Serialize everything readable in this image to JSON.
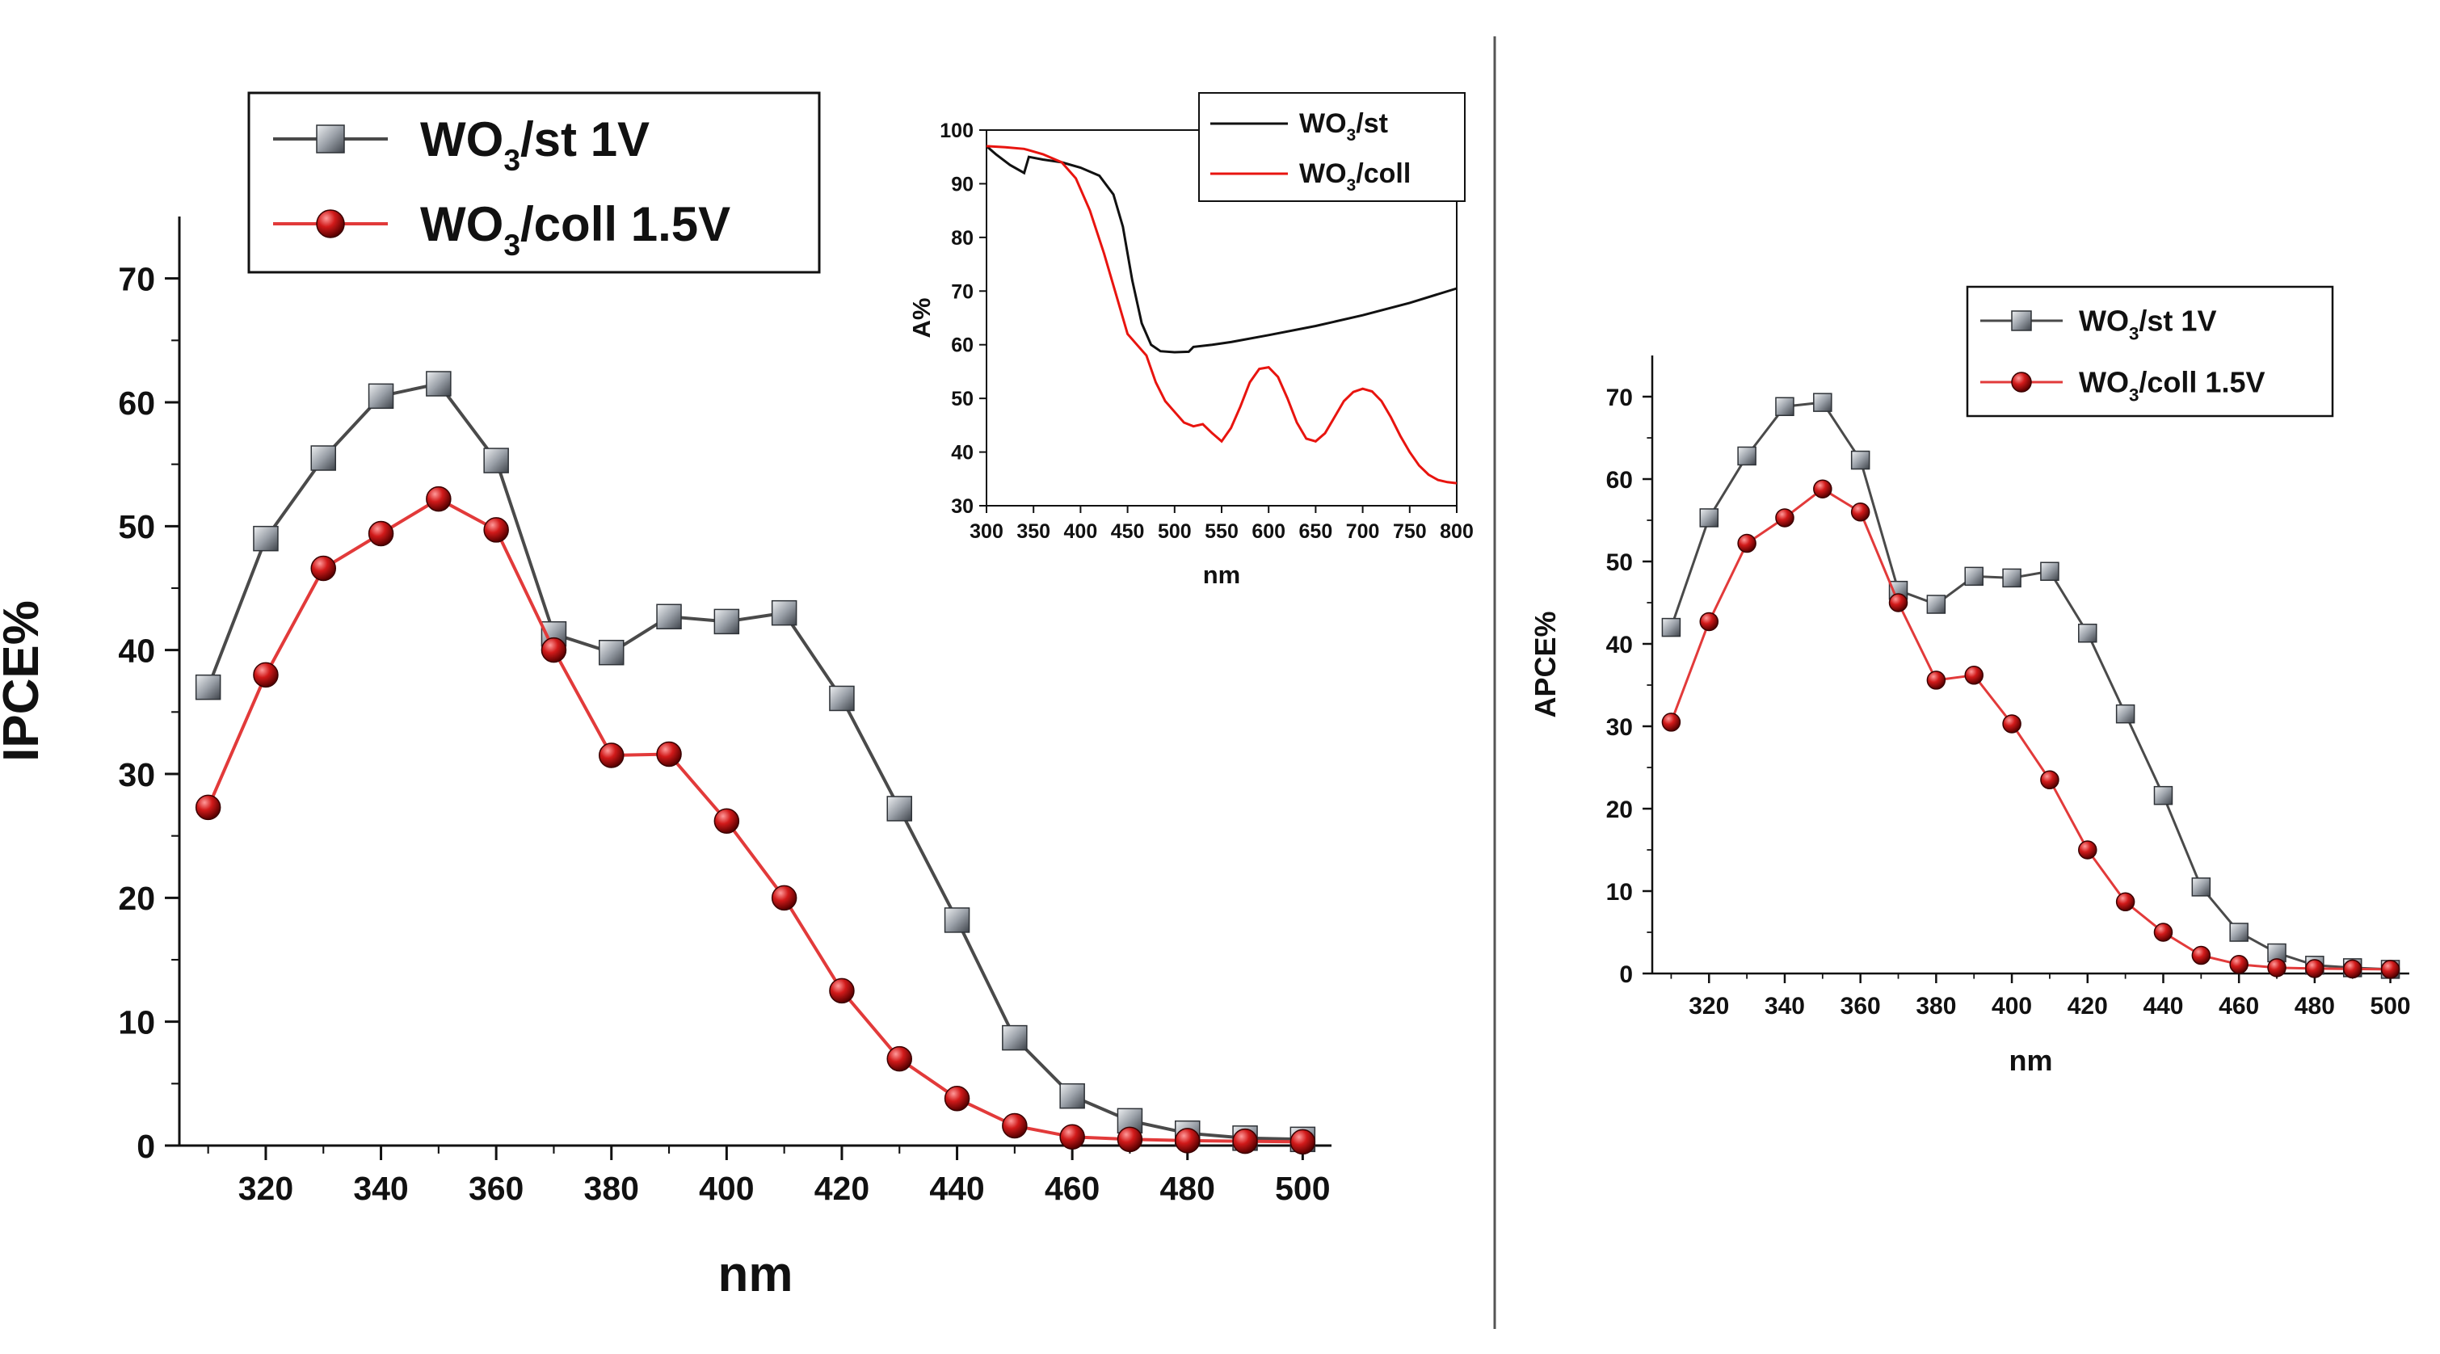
{
  "colors": {
    "series_st": "#4a4a4a",
    "series_coll": "#e23a3a",
    "coll_fill": "#c8141a",
    "st_fill": "#8a9098",
    "axis": "#111111",
    "divider": "#555555"
  },
  "chart_data": [
    {
      "type": "line",
      "id": "ipce",
      "xlabel": "nm",
      "ylabel": "IPCE%",
      "xlim": [
        305,
        505
      ],
      "ylim": [
        0,
        75
      ],
      "xticks": [
        320,
        340,
        360,
        380,
        400,
        420,
        440,
        460,
        480,
        500
      ],
      "yticks": [
        0,
        10,
        20,
        30,
        40,
        50,
        60,
        70
      ],
      "x": [
        310,
        320,
        330,
        340,
        350,
        360,
        370,
        380,
        390,
        400,
        410,
        420,
        430,
        440,
        450,
        460,
        470,
        480,
        490,
        500
      ],
      "series": [
        {
          "name": "WO3/st 1V",
          "label_main": "WO",
          "label_sub": "3",
          "label_rest": "/st  1V",
          "marker": "square",
          "values": [
            37,
            49,
            55.5,
            60.5,
            61.5,
            55.3,
            41.3,
            39.8,
            42.7,
            42.3,
            43,
            36.1,
            27.2,
            18.2,
            8.7,
            4,
            2,
            1,
            0.6,
            0.5
          ]
        },
        {
          "name": "WO3/coll 1.5V",
          "label_main": "WO",
          "label_sub": "3",
          "label_rest": "/coll  1.5V",
          "marker": "circle",
          "values": [
            27.3,
            38,
            46.6,
            49.4,
            52.2,
            49.7,
            40,
            31.5,
            31.6,
            26.2,
            20,
            12.5,
            7,
            3.8,
            1.6,
            0.7,
            0.5,
            0.4,
            0.35,
            0.3
          ]
        }
      ]
    },
    {
      "type": "line",
      "id": "absorbance-inset",
      "xlabel": "nm",
      "ylabel": "A%",
      "xlim": [
        300,
        800
      ],
      "ylim": [
        30,
        100
      ],
      "xticks": [
        300,
        350,
        400,
        450,
        500,
        550,
        600,
        650,
        700,
        750,
        800
      ],
      "yticks": [
        30,
        40,
        50,
        60,
        70,
        80,
        90,
        100
      ],
      "series": [
        {
          "name": "WO3/st",
          "label_main": "WO",
          "label_sub": "3",
          "label_rest": "/st",
          "points": [
            [
              300,
              97
            ],
            [
              310,
              95.5
            ],
            [
              325,
              93.5
            ],
            [
              340,
              92
            ],
            [
              345,
              95
            ],
            [
              360,
              94.5
            ],
            [
              380,
              94
            ],
            [
              400,
              93
            ],
            [
              420,
              91.5
            ],
            [
              435,
              88
            ],
            [
              445,
              82
            ],
            [
              455,
              72
            ],
            [
              465,
              64
            ],
            [
              475,
              60
            ],
            [
              485,
              58.8
            ],
            [
              500,
              58.6
            ],
            [
              515,
              58.7
            ],
            [
              520,
              59.6
            ],
            [
              540,
              60
            ],
            [
              560,
              60.5
            ],
            [
              600,
              61.8
            ],
            [
              650,
              63.5
            ],
            [
              700,
              65.5
            ],
            [
              750,
              67.8
            ],
            [
              800,
              70.5
            ]
          ]
        },
        {
          "name": "WO3/coll",
          "label_main": "WO",
          "label_sub": "3",
          "label_rest": "/coll",
          "points": [
            [
              300,
              97
            ],
            [
              320,
              96.8
            ],
            [
              340,
              96.5
            ],
            [
              360,
              95.5
            ],
            [
              380,
              94
            ],
            [
              395,
              91
            ],
            [
              410,
              85
            ],
            [
              425,
              77
            ],
            [
              440,
              68
            ],
            [
              450,
              62
            ],
            [
              460,
              60
            ],
            [
              470,
              58
            ],
            [
              480,
              53
            ],
            [
              490,
              49.5
            ],
            [
              500,
              47.5
            ],
            [
              510,
              45.5
            ],
            [
              520,
              44.8
            ],
            [
              530,
              45.2
            ],
            [
              540,
              43.5
            ],
            [
              550,
              42
            ],
            [
              560,
              44.5
            ],
            [
              570,
              48.5
            ],
            [
              580,
              53
            ],
            [
              590,
              55.5
            ],
            [
              600,
              55.8
            ],
            [
              610,
              54
            ],
            [
              620,
              50
            ],
            [
              630,
              45.5
            ],
            [
              640,
              42.5
            ],
            [
              650,
              42
            ],
            [
              660,
              43.5
            ],
            [
              670,
              46.5
            ],
            [
              680,
              49.5
            ],
            [
              690,
              51.2
            ],
            [
              700,
              51.8
            ],
            [
              710,
              51.3
            ],
            [
              720,
              49.5
            ],
            [
              730,
              46.5
            ],
            [
              740,
              43
            ],
            [
              750,
              40
            ],
            [
              760,
              37.5
            ],
            [
              770,
              35.8
            ],
            [
              780,
              34.8
            ],
            [
              790,
              34.4
            ],
            [
              800,
              34.2
            ]
          ]
        }
      ]
    },
    {
      "type": "line",
      "id": "apce",
      "xlabel": "nm",
      "ylabel": "APCE%",
      "xlim": [
        305,
        505
      ],
      "ylim": [
        0,
        75
      ],
      "xticks": [
        320,
        340,
        360,
        380,
        400,
        420,
        440,
        460,
        480,
        500
      ],
      "yticks": [
        0,
        10,
        20,
        30,
        40,
        50,
        60,
        70
      ],
      "x": [
        310,
        320,
        330,
        340,
        350,
        360,
        370,
        380,
        390,
        400,
        410,
        420,
        430,
        440,
        450,
        460,
        470,
        480,
        490,
        500
      ],
      "series": [
        {
          "name": "WO3/st 1V",
          "label_main": "WO",
          "label_sub": "3",
          "label_rest": "/st  1V",
          "marker": "square",
          "values": [
            42,
            55.3,
            62.8,
            68.8,
            69.3,
            62.3,
            46.5,
            44.8,
            48.2,
            48,
            48.8,
            41.3,
            31.5,
            21.6,
            10.5,
            5,
            2.5,
            1,
            0.7,
            0.5
          ]
        },
        {
          "name": "WO3/coll 1.5V",
          "label_main": "WO",
          "label_sub": "3",
          "label_rest": "/coll  1.5V",
          "marker": "circle",
          "values": [
            30.5,
            42.7,
            52.2,
            55.3,
            58.8,
            56,
            45,
            35.6,
            36.2,
            30.3,
            23.5,
            15,
            8.7,
            5,
            2.2,
            1.1,
            0.7,
            0.6,
            0.55,
            0.5
          ]
        }
      ]
    }
  ]
}
